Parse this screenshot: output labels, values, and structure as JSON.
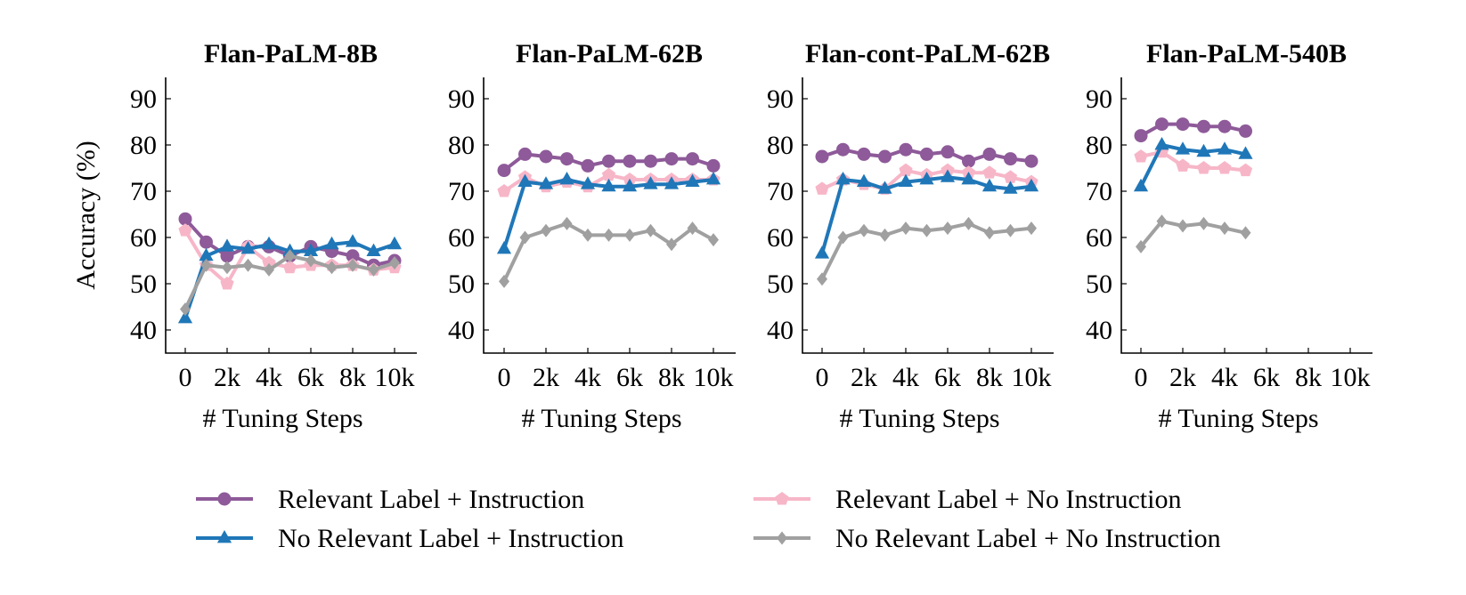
{
  "colors": {
    "relevant_label_instruction": "#8e5a99",
    "no_relevant_label_instruction": "#1f77b8",
    "relevant_label_no_instruction": "#f7b6c8",
    "no_relevant_label_no_instruction": "#a0a0a0"
  },
  "legend": [
    {
      "label": "Relevant Label + Instruction",
      "color": "#8e5a99",
      "marker": "circle"
    },
    {
      "label": "Relevant Label + No Instruction",
      "color": "#f7b6c8",
      "marker": "pentagon"
    },
    {
      "label": "No Relevant Label + Instruction",
      "color": "#1f77b8",
      "marker": "triangle"
    },
    {
      "label": "No Relevant Label + No Instruction",
      "color": "#a0a0a0",
      "marker": "diamond"
    }
  ],
  "chart_data": [
    {
      "type": "line",
      "title": "Flan-PaLM-8B",
      "xlabel": "# Tuning Steps",
      "ylabel": "Accuracy (%)",
      "xlim": [
        -500,
        10500
      ],
      "ylim": [
        35,
        95
      ],
      "xticks": [
        0,
        2000,
        4000,
        6000,
        8000,
        10000
      ],
      "xtick_labels": [
        "0",
        "2k",
        "4k",
        "6k",
        "8k",
        "10k"
      ],
      "yticks": [
        40,
        50,
        60,
        70,
        80,
        90
      ],
      "ytick_labels": [
        "40",
        "50",
        "60",
        "70",
        "80",
        "90"
      ],
      "x": [
        0,
        1000,
        2000,
        3000,
        4000,
        5000,
        6000,
        7000,
        8000,
        9000,
        10000
      ],
      "series": [
        {
          "name": "Relevant Label + Instruction",
          "values": [
            64,
            59,
            56,
            58,
            58,
            56,
            58,
            57,
            56,
            54,
            55
          ]
        },
        {
          "name": "Relevant Label + No Instruction",
          "values": [
            61.5,
            54,
            50,
            58,
            54.5,
            53.5,
            54,
            54,
            54,
            53,
            53.5
          ]
        },
        {
          "name": "No Relevant Label + Instruction",
          "values": [
            42.5,
            56,
            58,
            57.5,
            58.5,
            57,
            57,
            58.5,
            59,
            57,
            58.5
          ]
        },
        {
          "name": "No Relevant Label + No Instruction",
          "values": [
            44.5,
            54,
            53.5,
            54,
            53,
            56,
            55,
            53.5,
            54,
            53,
            54.5
          ]
        }
      ]
    },
    {
      "type": "line",
      "title": "Flan-PaLM-62B",
      "xlabel": "# Tuning Steps",
      "ylabel": "",
      "xlim": [
        -500,
        10500
      ],
      "ylim": [
        35,
        95
      ],
      "xticks": [
        0,
        2000,
        4000,
        6000,
        8000,
        10000
      ],
      "xtick_labels": [
        "0",
        "2k",
        "4k",
        "6k",
        "8k",
        "10k"
      ],
      "yticks": [
        40,
        50,
        60,
        70,
        80,
        90
      ],
      "ytick_labels": [
        "40",
        "50",
        "60",
        "70",
        "80",
        "90"
      ],
      "x": [
        0,
        1000,
        2000,
        3000,
        4000,
        5000,
        6000,
        7000,
        8000,
        9000,
        10000
      ],
      "series": [
        {
          "name": "Relevant Label + Instruction",
          "values": [
            74.5,
            78,
            77.5,
            77,
            75.5,
            76.5,
            76.5,
            76.5,
            77,
            77,
            75.5
          ]
        },
        {
          "name": "Relevant Label + No Instruction",
          "values": [
            70,
            73,
            71,
            72,
            71,
            73.5,
            72.5,
            72.5,
            72.5,
            72.5,
            72.5
          ]
        },
        {
          "name": "No Relevant Label + Instruction",
          "values": [
            57.5,
            72,
            71.5,
            72.5,
            71.5,
            71,
            71,
            71.5,
            71.5,
            72,
            72.5
          ]
        },
        {
          "name": "No Relevant Label + No Instruction",
          "values": [
            50.5,
            60,
            61.5,
            63,
            60.5,
            60.5,
            60.5,
            61.5,
            58.5,
            62,
            59.5
          ]
        }
      ]
    },
    {
      "type": "line",
      "title": "Flan-cont-PaLM-62B",
      "xlabel": "# Tuning Steps",
      "ylabel": "",
      "xlim": [
        -500,
        10500
      ],
      "ylim": [
        35,
        95
      ],
      "xticks": [
        0,
        2000,
        4000,
        6000,
        8000,
        10000
      ],
      "xtick_labels": [
        "0",
        "2k",
        "4k",
        "6k",
        "8k",
        "10k"
      ],
      "yticks": [
        40,
        50,
        60,
        70,
        80,
        90
      ],
      "ytick_labels": [
        "40",
        "50",
        "60",
        "70",
        "80",
        "90"
      ],
      "x": [
        0,
        1000,
        2000,
        3000,
        4000,
        5000,
        6000,
        7000,
        8000,
        9000,
        10000
      ],
      "series": [
        {
          "name": "Relevant Label + Instruction",
          "values": [
            77.5,
            79,
            78,
            77.5,
            79,
            78,
            78.5,
            76.5,
            78,
            77,
            76.5
          ]
        },
        {
          "name": "Relevant Label + No Instruction",
          "values": [
            70.5,
            72.5,
            71.5,
            70.5,
            74.5,
            73.5,
            74.5,
            74,
            74,
            73,
            72
          ]
        },
        {
          "name": "No Relevant Label + Instruction",
          "values": [
            56.5,
            72.5,
            72,
            70.5,
            72,
            72.5,
            73,
            72.5,
            71,
            70.5,
            71
          ]
        },
        {
          "name": "No Relevant Label + No Instruction",
          "values": [
            51,
            60,
            61.5,
            60.5,
            62,
            61.5,
            62,
            63,
            61,
            61.5,
            62
          ]
        }
      ]
    },
    {
      "type": "line",
      "title": "Flan-PaLM-540B",
      "xlabel": "# Tuning Steps",
      "ylabel": "",
      "xlim": [
        -500,
        10500
      ],
      "ylim": [
        35,
        95
      ],
      "xticks": [
        0,
        2000,
        4000,
        6000,
        8000,
        10000
      ],
      "xtick_labels": [
        "0",
        "2k",
        "4k",
        "6k",
        "8k",
        "10k"
      ],
      "yticks": [
        40,
        50,
        60,
        70,
        80,
        90
      ],
      "ytick_labels": [
        "40",
        "50",
        "60",
        "70",
        "80",
        "90"
      ],
      "x": [
        0,
        1000,
        2000,
        3000,
        4000,
        5000
      ],
      "series": [
        {
          "name": "Relevant Label + Instruction",
          "values": [
            82,
            84.5,
            84.5,
            84,
            84,
            83
          ]
        },
        {
          "name": "Relevant Label + No Instruction",
          "values": [
            77.5,
            78.5,
            75.5,
            75,
            75,
            74.5
          ]
        },
        {
          "name": "No Relevant Label + Instruction",
          "values": [
            71,
            80,
            79,
            78.5,
            79,
            78
          ]
        },
        {
          "name": "No Relevant Label + No Instruction",
          "values": [
            58,
            63.5,
            62.5,
            63,
            62,
            61
          ]
        }
      ]
    }
  ]
}
